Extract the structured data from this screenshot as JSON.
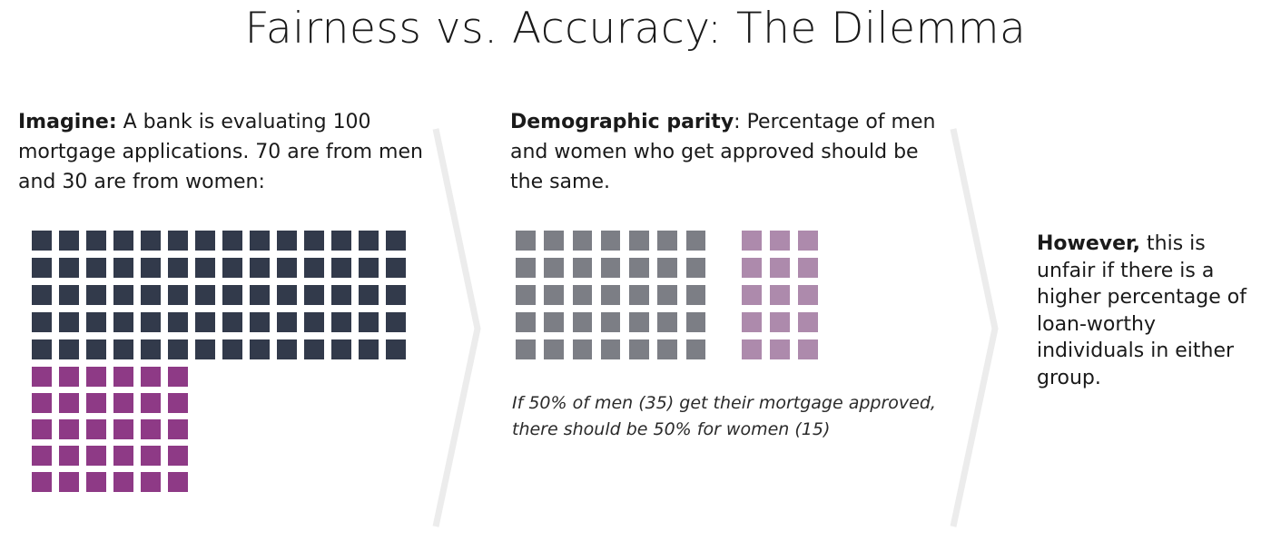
{
  "title": "Fairness vs. Accuracy: The Dilemma",
  "columns": [
    {
      "lead": "Imagine:",
      "body": " A bank is evaluating 100 mortgage applications. 70 are from men and 30 are from women:"
    },
    {
      "lead": "Demographic parity",
      "body": ": Percentage of men and women who get approved should be the same.",
      "note": "If 50% of men (35) get their mortgage approved, there should be 50% for women (15)"
    },
    {
      "lead": "However,",
      "body": " this is unfair if there is a higher percentage of loan-worthy individuals in either group."
    }
  ],
  "grids": {
    "men_all": {
      "count": 70,
      "color": "#323a4b"
    },
    "women_all": {
      "count": 30,
      "color": "#8e3a86"
    },
    "men_approved": {
      "count": 35,
      "color": "#7c7e85"
    },
    "women_approved": {
      "count": 15,
      "color": "#ad8aac"
    }
  },
  "divider_color": "#ececec"
}
